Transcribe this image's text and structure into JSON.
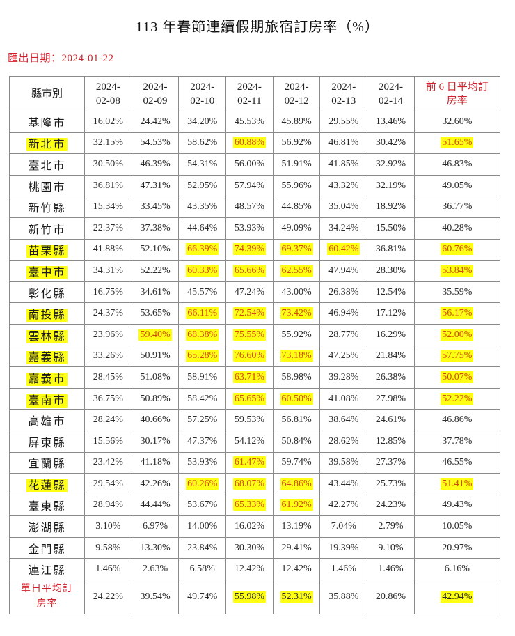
{
  "title": "113 年春節連續假期旅宿訂房率（%）",
  "export_date_label": "匯出日期：2024-01-22",
  "colors": {
    "highlight_bg": "#ffff14",
    "highlight_text": "#d4480e",
    "header_red": "#d0202a",
    "border": "#8a8a8a"
  },
  "table": {
    "headers": [
      "縣市別",
      "2024-\n02-08",
      "2024-\n02-09",
      "2024-\n02-10",
      "2024-\n02-11",
      "2024-\n02-12",
      "2024-\n02-13",
      "2024-\n02-14",
      "前 6 日平均訂\n房率"
    ],
    "header_lines": [
      [
        "縣市別"
      ],
      [
        "2024-",
        "02-08"
      ],
      [
        "2024-",
        "02-09"
      ],
      [
        "2024-",
        "02-10"
      ],
      [
        "2024-",
        "02-11"
      ],
      [
        "2024-",
        "02-12"
      ],
      [
        "2024-",
        "02-13"
      ],
      [
        "2024-",
        "02-14"
      ],
      [
        "前 6 日平均訂",
        "房率"
      ]
    ],
    "rows": [
      {
        "name": "基隆市",
        "name_hl": false,
        "values": [
          "16.02%",
          "24.42%",
          "34.20%",
          "45.53%",
          "45.89%",
          "29.55%",
          "13.46%",
          "32.60%"
        ],
        "hl": [
          0,
          0,
          0,
          0,
          0,
          0,
          0,
          0
        ]
      },
      {
        "name": "新北市",
        "name_hl": true,
        "values": [
          "32.15%",
          "54.53%",
          "58.62%",
          "60.88%",
          "56.92%",
          "46.81%",
          "30.42%",
          "51.65%"
        ],
        "hl": [
          0,
          0,
          0,
          2,
          0,
          0,
          0,
          2
        ]
      },
      {
        "name": "臺北市",
        "name_hl": false,
        "values": [
          "30.50%",
          "46.39%",
          "54.31%",
          "56.00%",
          "51.91%",
          "41.85%",
          "32.92%",
          "46.83%"
        ],
        "hl": [
          0,
          0,
          0,
          0,
          0,
          0,
          0,
          0
        ]
      },
      {
        "name": "桃園市",
        "name_hl": false,
        "values": [
          "36.81%",
          "47.31%",
          "52.95%",
          "57.94%",
          "55.96%",
          "43.32%",
          "32.19%",
          "49.05%"
        ],
        "hl": [
          0,
          0,
          0,
          0,
          0,
          0,
          0,
          0
        ]
      },
      {
        "name": "新竹縣",
        "name_hl": false,
        "values": [
          "15.34%",
          "33.45%",
          "43.35%",
          "48.57%",
          "44.85%",
          "35.04%",
          "18.92%",
          "36.77%"
        ],
        "hl": [
          0,
          0,
          0,
          0,
          0,
          0,
          0,
          0
        ]
      },
      {
        "name": "新竹市",
        "name_hl": false,
        "values": [
          "22.37%",
          "37.38%",
          "44.64%",
          "53.93%",
          "49.09%",
          "34.24%",
          "15.50%",
          "40.28%"
        ],
        "hl": [
          0,
          0,
          0,
          0,
          0,
          0,
          0,
          0
        ]
      },
      {
        "name": "苗栗縣",
        "name_hl": true,
        "values": [
          "41.88%",
          "52.10%",
          "66.39%",
          "74.39%",
          "69.37%",
          "60.42%",
          "36.81%",
          "60.76%"
        ],
        "hl": [
          0,
          0,
          2,
          2,
          2,
          2,
          0,
          2
        ]
      },
      {
        "name": "臺中市",
        "name_hl": true,
        "values": [
          "34.31%",
          "52.22%",
          "60.33%",
          "65.66%",
          "62.55%",
          "47.94%",
          "28.30%",
          "53.84%"
        ],
        "hl": [
          0,
          0,
          2,
          2,
          2,
          0,
          0,
          2
        ]
      },
      {
        "name": "彰化縣",
        "name_hl": false,
        "values": [
          "16.75%",
          "34.61%",
          "45.57%",
          "47.24%",
          "43.00%",
          "26.38%",
          "12.54%",
          "35.59%"
        ],
        "hl": [
          0,
          0,
          0,
          0,
          0,
          0,
          0,
          0
        ]
      },
      {
        "name": "南投縣",
        "name_hl": true,
        "values": [
          "24.37%",
          "53.65%",
          "66.11%",
          "72.54%",
          "73.42%",
          "46.94%",
          "17.12%",
          "56.17%"
        ],
        "hl": [
          0,
          0,
          2,
          2,
          2,
          0,
          0,
          2
        ]
      },
      {
        "name": "雲林縣",
        "name_hl": true,
        "values": [
          "23.96%",
          "59.40%",
          "68.38%",
          "75.55%",
          "55.92%",
          "28.77%",
          "16.29%",
          "52.00%"
        ],
        "hl": [
          0,
          2,
          2,
          2,
          0,
          0,
          0,
          2
        ]
      },
      {
        "name": "嘉義縣",
        "name_hl": true,
        "values": [
          "33.26%",
          "50.91%",
          "65.28%",
          "76.60%",
          "73.18%",
          "47.25%",
          "21.84%",
          "57.75%"
        ],
        "hl": [
          0,
          0,
          2,
          2,
          2,
          0,
          0,
          2
        ]
      },
      {
        "name": "嘉義市",
        "name_hl": true,
        "values": [
          "28.45%",
          "51.08%",
          "58.91%",
          "63.71%",
          "58.98%",
          "39.28%",
          "26.38%",
          "50.07%"
        ],
        "hl": [
          0,
          0,
          0,
          2,
          0,
          0,
          0,
          2
        ]
      },
      {
        "name": "臺南市",
        "name_hl": true,
        "values": [
          "36.75%",
          "50.89%",
          "58.42%",
          "65.65%",
          "60.50%",
          "41.08%",
          "27.98%",
          "52.22%"
        ],
        "hl": [
          0,
          0,
          0,
          2,
          2,
          0,
          0,
          2
        ]
      },
      {
        "name": "高雄市",
        "name_hl": false,
        "values": [
          "28.24%",
          "40.66%",
          "57.25%",
          "59.53%",
          "56.81%",
          "38.64%",
          "24.61%",
          "46.86%"
        ],
        "hl": [
          0,
          0,
          0,
          0,
          0,
          0,
          0,
          0
        ]
      },
      {
        "name": "屏東縣",
        "name_hl": false,
        "values": [
          "15.56%",
          "30.17%",
          "47.37%",
          "54.12%",
          "50.84%",
          "28.62%",
          "12.85%",
          "37.78%"
        ],
        "hl": [
          0,
          0,
          0,
          0,
          0,
          0,
          0,
          0
        ]
      },
      {
        "name": "宜蘭縣",
        "name_hl": false,
        "values": [
          "23.42%",
          "41.18%",
          "53.93%",
          "61.47%",
          "59.74%",
          "39.58%",
          "27.37%",
          "46.55%"
        ],
        "hl": [
          0,
          0,
          0,
          2,
          0,
          0,
          0,
          0
        ]
      },
      {
        "name": "花蓮縣",
        "name_hl": true,
        "values": [
          "29.54%",
          "42.26%",
          "60.26%",
          "68.07%",
          "64.86%",
          "43.44%",
          "25.73%",
          "51.41%"
        ],
        "hl": [
          0,
          0,
          2,
          2,
          2,
          0,
          0,
          2
        ]
      },
      {
        "name": "臺東縣",
        "name_hl": false,
        "values": [
          "28.94%",
          "44.44%",
          "53.67%",
          "65.33%",
          "61.92%",
          "42.27%",
          "24.23%",
          "49.43%"
        ],
        "hl": [
          0,
          0,
          0,
          2,
          2,
          0,
          0,
          0
        ]
      },
      {
        "name": "澎湖縣",
        "name_hl": false,
        "values": [
          "3.10%",
          "6.97%",
          "14.00%",
          "16.02%",
          "13.19%",
          "7.04%",
          "2.79%",
          "10.05%"
        ],
        "hl": [
          0,
          0,
          0,
          0,
          0,
          0,
          0,
          0
        ]
      },
      {
        "name": "金門縣",
        "name_hl": false,
        "values": [
          "9.58%",
          "13.30%",
          "23.84%",
          "30.30%",
          "29.41%",
          "19.39%",
          "9.10%",
          "20.97%"
        ],
        "hl": [
          0,
          0,
          0,
          0,
          0,
          0,
          0,
          0
        ]
      },
      {
        "name": "連江縣",
        "name_hl": false,
        "values": [
          "1.46%",
          "2.63%",
          "6.58%",
          "12.42%",
          "12.42%",
          "1.46%",
          "1.46%",
          "6.16%"
        ],
        "hl": [
          0,
          0,
          0,
          0,
          0,
          0,
          0,
          0
        ]
      }
    ],
    "summary": {
      "name_lines": [
        "單日平均訂",
        "房率"
      ],
      "values": [
        "24.22%",
        "39.54%",
        "49.74%",
        "55.98%",
        "52.31%",
        "35.88%",
        "20.86%",
        "42.94%"
      ],
      "hl": [
        0,
        0,
        0,
        1,
        1,
        0,
        0,
        1
      ]
    }
  }
}
